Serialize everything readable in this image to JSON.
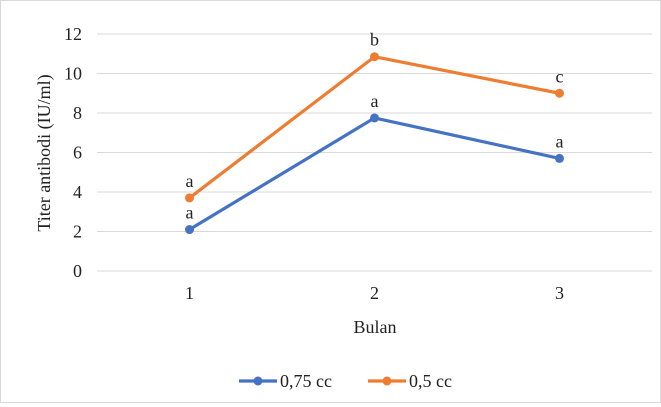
{
  "chart_data": {
    "type": "line",
    "xlabel": "Bulan",
    "ylabel": "Titer antibodi (IU/ml)",
    "categories": [
      "1",
      "2",
      "3"
    ],
    "ylim": [
      0,
      12
    ],
    "yticks": [
      "0",
      "2",
      "4",
      "6",
      "8",
      "10",
      "12"
    ],
    "grid": true,
    "legend_position": "bottom",
    "series": [
      {
        "name": "0,75 cc",
        "color": "#4472c4",
        "values": [
          2.1,
          7.75,
          5.7
        ],
        "labels": [
          "a",
          "a",
          "a"
        ]
      },
      {
        "name": "0,5 cc",
        "color": "#ed7d31",
        "values": [
          3.7,
          10.85,
          9.0
        ],
        "labels": [
          "a",
          "b",
          "c"
        ]
      }
    ]
  }
}
